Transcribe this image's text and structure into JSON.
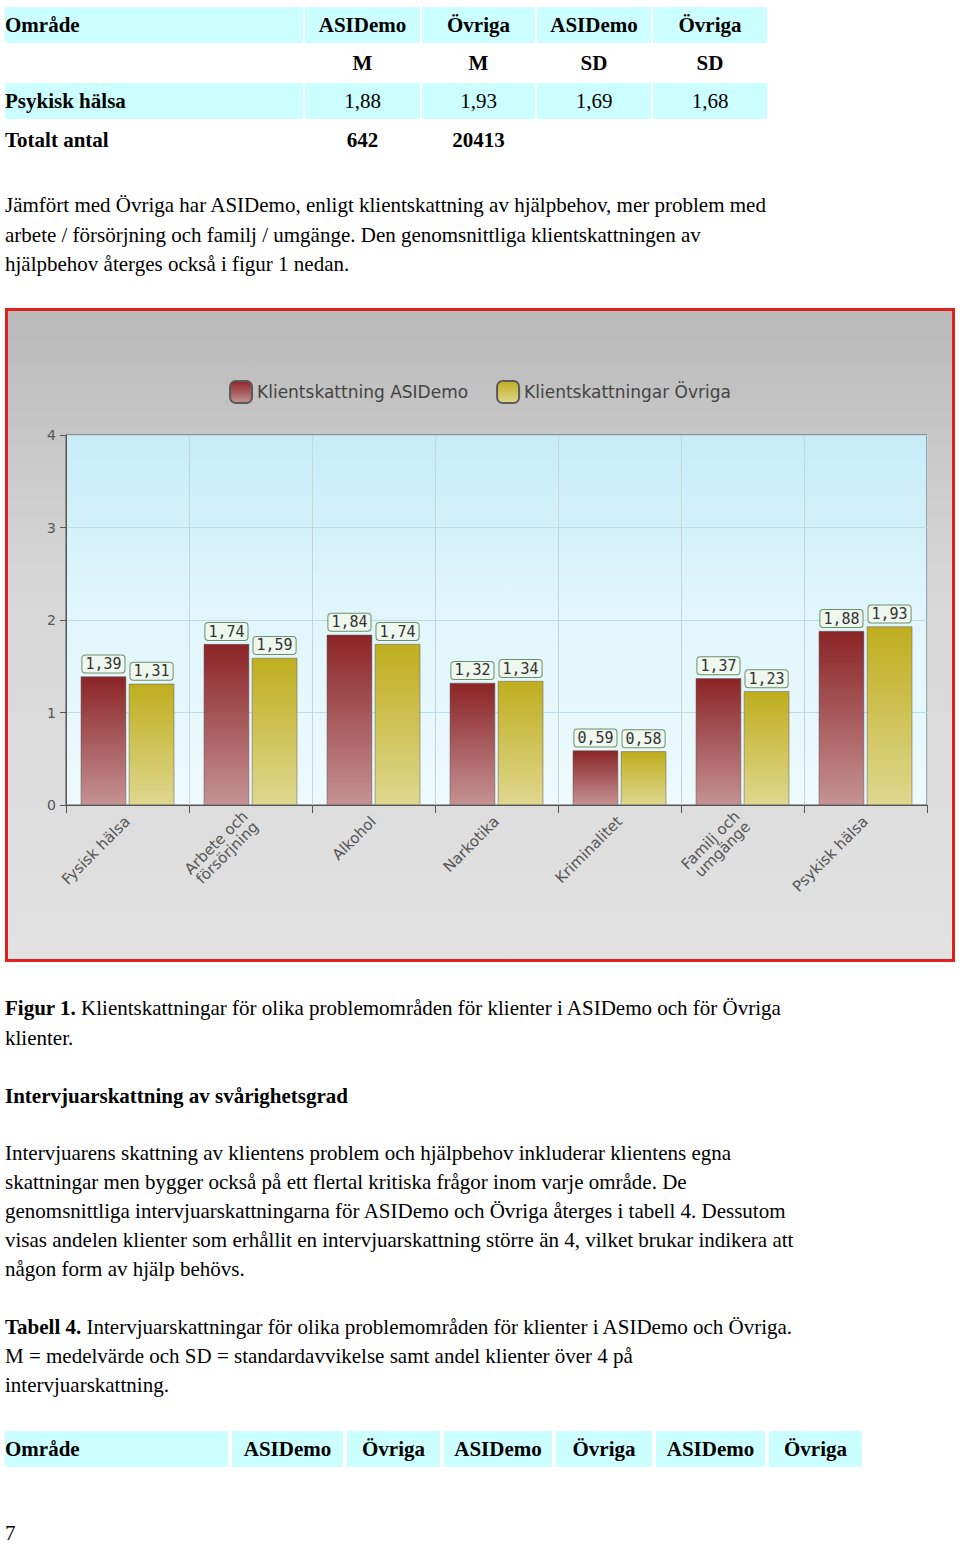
{
  "table_top": {
    "header": [
      "Område",
      "ASIDemo",
      "Övriga",
      "ASIDemo",
      "Övriga"
    ],
    "rows": [
      [
        "",
        "M",
        "M",
        "SD",
        "SD"
      ],
      [
        "Psykisk hälsa",
        "1,88",
        "1,93",
        "1,69",
        "1,68"
      ],
      [
        "Totalt antal",
        "642",
        "20413"
      ]
    ]
  },
  "text_1": [
    "Jämfört med Övriga har ASIDemo, enligt klientskattning av hjälpbehov, mer problem med",
    "arbete / försörjning och familj / umgänge. Den genomsnittliga klientskattningen av",
    "hjälpbehov återges också i figur 1 nedan."
  ],
  "chart_data": {
    "type": "bar",
    "categories": [
      "Fysisk hälsa",
      "Arbete och\nförsörjning",
      "Alkohol",
      "Narkotika",
      "Kriminalitet",
      "Familj och\numgänge",
      "Psykisk hälsa"
    ],
    "series": [
      {
        "name": "Klientskattning ASIDemo",
        "color": "#8b2426",
        "values": [
          1.39,
          1.74,
          1.84,
          1.32,
          0.59,
          1.37,
          1.88
        ],
        "value_labels": [
          "1,39",
          "1,74",
          "1,84",
          "1,32",
          "0,59",
          "1,37",
          "1,88"
        ]
      },
      {
        "name": "Klientskattningar Övriga",
        "color": "#bfae1e",
        "values": [
          1.31,
          1.59,
          1.74,
          1.34,
          0.58,
          1.23,
          1.93
        ],
        "value_labels": [
          "1,31",
          "1,59",
          "1,74",
          "1,34",
          "0,58",
          "1,23",
          "1,93"
        ]
      }
    ],
    "ylim": [
      0,
      4
    ],
    "yticks": [
      0,
      1,
      2,
      3,
      4
    ],
    "grid": true,
    "legend": "top",
    "data_labels": true
  },
  "figure_caption": {
    "label": "Figur 1.",
    "lines": [
      "Klientskattningar för olika problemområden för klienter i ASIDemo och för Övriga",
      "klienter."
    ]
  },
  "heading": "Intervjuarskattning av svårighetsgrad",
  "text_2": [
    "Intervjuarens skattning av klientens problem och hjälpbehov inkluderar klientens egna",
    "skattningar men bygger också på ett flertal kritiska frågor inom varje område. De",
    "genomsnittliga intervjuarskattningarna för ASIDemo och Övriga återges i tabell 4. Dessutom",
    "visas andelen klienter som erhållit en intervjuarskattning större än 4, vilket brukar indikera att",
    "någon form av hjälp behövs."
  ],
  "table_caption": {
    "label": "Tabell 4.",
    "lines": [
      "Intervjuarskattningar för olika problemområden för klienter i ASIDemo och Övriga.",
      "M = medelvärde och SD = standardavvikelse samt andel klienter över 4 på",
      "intervjuarskattning."
    ]
  },
  "table_bottom": {
    "header": [
      "Område",
      "ASIDemo",
      "Övriga",
      "ASIDemo",
      "Övriga",
      "ASIDemo",
      "Övriga"
    ]
  },
  "page_number": "7"
}
